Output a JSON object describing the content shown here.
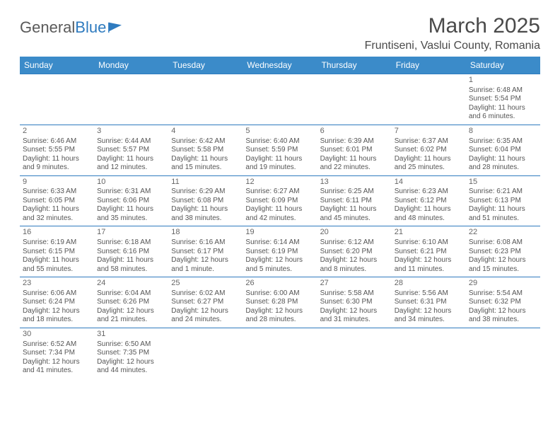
{
  "logo": {
    "text1": "General",
    "text2": "Blue"
  },
  "title": "March 2025",
  "location": "Fruntiseni, Vaslui County, Romania",
  "colors": {
    "headerBg": "#3b8bc9",
    "border": "#2f7bbf",
    "text": "#555555"
  },
  "dayHeaders": [
    "Sunday",
    "Monday",
    "Tuesday",
    "Wednesday",
    "Thursday",
    "Friday",
    "Saturday"
  ],
  "weeks": [
    [
      null,
      null,
      null,
      null,
      null,
      null,
      {
        "n": "1",
        "sr": "Sunrise: 6:48 AM",
        "ss": "Sunset: 5:54 PM",
        "dl": "Daylight: 11 hours and 6 minutes."
      }
    ],
    [
      {
        "n": "2",
        "sr": "Sunrise: 6:46 AM",
        "ss": "Sunset: 5:55 PM",
        "dl": "Daylight: 11 hours and 9 minutes."
      },
      {
        "n": "3",
        "sr": "Sunrise: 6:44 AM",
        "ss": "Sunset: 5:57 PM",
        "dl": "Daylight: 11 hours and 12 minutes."
      },
      {
        "n": "4",
        "sr": "Sunrise: 6:42 AM",
        "ss": "Sunset: 5:58 PM",
        "dl": "Daylight: 11 hours and 15 minutes."
      },
      {
        "n": "5",
        "sr": "Sunrise: 6:40 AM",
        "ss": "Sunset: 5:59 PM",
        "dl": "Daylight: 11 hours and 19 minutes."
      },
      {
        "n": "6",
        "sr": "Sunrise: 6:39 AM",
        "ss": "Sunset: 6:01 PM",
        "dl": "Daylight: 11 hours and 22 minutes."
      },
      {
        "n": "7",
        "sr": "Sunrise: 6:37 AM",
        "ss": "Sunset: 6:02 PM",
        "dl": "Daylight: 11 hours and 25 minutes."
      },
      {
        "n": "8",
        "sr": "Sunrise: 6:35 AM",
        "ss": "Sunset: 6:04 PM",
        "dl": "Daylight: 11 hours and 28 minutes."
      }
    ],
    [
      {
        "n": "9",
        "sr": "Sunrise: 6:33 AM",
        "ss": "Sunset: 6:05 PM",
        "dl": "Daylight: 11 hours and 32 minutes."
      },
      {
        "n": "10",
        "sr": "Sunrise: 6:31 AM",
        "ss": "Sunset: 6:06 PM",
        "dl": "Daylight: 11 hours and 35 minutes."
      },
      {
        "n": "11",
        "sr": "Sunrise: 6:29 AM",
        "ss": "Sunset: 6:08 PM",
        "dl": "Daylight: 11 hours and 38 minutes."
      },
      {
        "n": "12",
        "sr": "Sunrise: 6:27 AM",
        "ss": "Sunset: 6:09 PM",
        "dl": "Daylight: 11 hours and 42 minutes."
      },
      {
        "n": "13",
        "sr": "Sunrise: 6:25 AM",
        "ss": "Sunset: 6:11 PM",
        "dl": "Daylight: 11 hours and 45 minutes."
      },
      {
        "n": "14",
        "sr": "Sunrise: 6:23 AM",
        "ss": "Sunset: 6:12 PM",
        "dl": "Daylight: 11 hours and 48 minutes."
      },
      {
        "n": "15",
        "sr": "Sunrise: 6:21 AM",
        "ss": "Sunset: 6:13 PM",
        "dl": "Daylight: 11 hours and 51 minutes."
      }
    ],
    [
      {
        "n": "16",
        "sr": "Sunrise: 6:19 AM",
        "ss": "Sunset: 6:15 PM",
        "dl": "Daylight: 11 hours and 55 minutes."
      },
      {
        "n": "17",
        "sr": "Sunrise: 6:18 AM",
        "ss": "Sunset: 6:16 PM",
        "dl": "Daylight: 11 hours and 58 minutes."
      },
      {
        "n": "18",
        "sr": "Sunrise: 6:16 AM",
        "ss": "Sunset: 6:17 PM",
        "dl": "Daylight: 12 hours and 1 minute."
      },
      {
        "n": "19",
        "sr": "Sunrise: 6:14 AM",
        "ss": "Sunset: 6:19 PM",
        "dl": "Daylight: 12 hours and 5 minutes."
      },
      {
        "n": "20",
        "sr": "Sunrise: 6:12 AM",
        "ss": "Sunset: 6:20 PM",
        "dl": "Daylight: 12 hours and 8 minutes."
      },
      {
        "n": "21",
        "sr": "Sunrise: 6:10 AM",
        "ss": "Sunset: 6:21 PM",
        "dl": "Daylight: 12 hours and 11 minutes."
      },
      {
        "n": "22",
        "sr": "Sunrise: 6:08 AM",
        "ss": "Sunset: 6:23 PM",
        "dl": "Daylight: 12 hours and 15 minutes."
      }
    ],
    [
      {
        "n": "23",
        "sr": "Sunrise: 6:06 AM",
        "ss": "Sunset: 6:24 PM",
        "dl": "Daylight: 12 hours and 18 minutes."
      },
      {
        "n": "24",
        "sr": "Sunrise: 6:04 AM",
        "ss": "Sunset: 6:26 PM",
        "dl": "Daylight: 12 hours and 21 minutes."
      },
      {
        "n": "25",
        "sr": "Sunrise: 6:02 AM",
        "ss": "Sunset: 6:27 PM",
        "dl": "Daylight: 12 hours and 24 minutes."
      },
      {
        "n": "26",
        "sr": "Sunrise: 6:00 AM",
        "ss": "Sunset: 6:28 PM",
        "dl": "Daylight: 12 hours and 28 minutes."
      },
      {
        "n": "27",
        "sr": "Sunrise: 5:58 AM",
        "ss": "Sunset: 6:30 PM",
        "dl": "Daylight: 12 hours and 31 minutes."
      },
      {
        "n": "28",
        "sr": "Sunrise: 5:56 AM",
        "ss": "Sunset: 6:31 PM",
        "dl": "Daylight: 12 hours and 34 minutes."
      },
      {
        "n": "29",
        "sr": "Sunrise: 5:54 AM",
        "ss": "Sunset: 6:32 PM",
        "dl": "Daylight: 12 hours and 38 minutes."
      }
    ],
    [
      {
        "n": "30",
        "sr": "Sunrise: 6:52 AM",
        "ss": "Sunset: 7:34 PM",
        "dl": "Daylight: 12 hours and 41 minutes."
      },
      {
        "n": "31",
        "sr": "Sunrise: 6:50 AM",
        "ss": "Sunset: 7:35 PM",
        "dl": "Daylight: 12 hours and 44 minutes."
      },
      null,
      null,
      null,
      null,
      null
    ]
  ]
}
